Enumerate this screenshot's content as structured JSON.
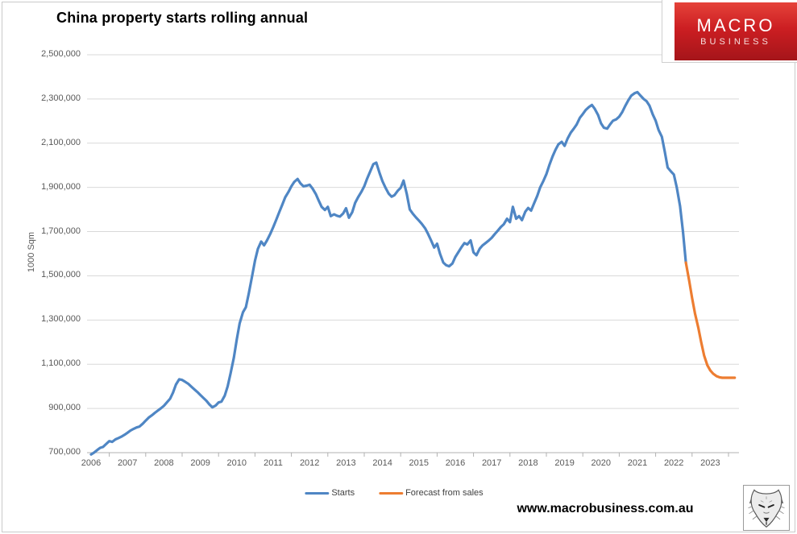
{
  "title": "China property starts rolling annual",
  "logo": {
    "line1": "MACRO",
    "line2": "BUSINESS",
    "background": "#c1191e"
  },
  "footer": {
    "website": "www.macrobusiness.com.au",
    "wolf_icon": "fox-sketch"
  },
  "colors": {
    "starts_line": "#4f86c4",
    "forecast_line": "#ed7d31",
    "gridline": "#d9d9d9",
    "axis_line": "#b0b0b0",
    "tick_text": "#595959",
    "title_text": "#000000"
  },
  "chart_data": {
    "type": "line",
    "title": "China property starts rolling annual",
    "xlabel": "",
    "ylabel": "1000 Sqm",
    "ylim": [
      700000,
      2500000
    ],
    "xlim": [
      2006,
      2023.8
    ],
    "grid": true,
    "legend_position": "bottom",
    "y_ticks": [
      {
        "label": "2,500,000",
        "value": 2500000
      },
      {
        "label": "2,300,000",
        "value": 2300000
      },
      {
        "label": "2,100,000",
        "value": 2100000
      },
      {
        "label": "1,900,000",
        "value": 1900000
      },
      {
        "label": "1,700,000",
        "value": 1700000
      },
      {
        "label": "1,500,000",
        "value": 1500000
      },
      {
        "label": "1,300,000",
        "value": 1300000
      },
      {
        "label": "1,100,000",
        "value": 1100000
      },
      {
        "label": "900,000",
        "value": 900000
      },
      {
        "label": "700,000",
        "value": 700000
      }
    ],
    "x_ticks": [
      2006,
      2007,
      2008,
      2009,
      2010,
      2011,
      2012,
      2013,
      2014,
      2015,
      2016,
      2017,
      2018,
      2019,
      2020,
      2021,
      2022,
      2023
    ],
    "series": [
      {
        "name": "Starts",
        "color": "#4f86c4",
        "points": [
          [
            2006.0,
            692000
          ],
          [
            2006.08,
            700000
          ],
          [
            2006.17,
            712000
          ],
          [
            2006.25,
            722000
          ],
          [
            2006.33,
            726000
          ],
          [
            2006.42,
            740000
          ],
          [
            2006.5,
            752000
          ],
          [
            2006.58,
            749000
          ],
          [
            2006.67,
            760000
          ],
          [
            2006.75,
            766000
          ],
          [
            2006.83,
            772000
          ],
          [
            2006.92,
            781000
          ],
          [
            2007.0,
            790000
          ],
          [
            2007.08,
            800000
          ],
          [
            2007.17,
            808000
          ],
          [
            2007.25,
            814000
          ],
          [
            2007.33,
            818000
          ],
          [
            2007.42,
            831000
          ],
          [
            2007.5,
            845000
          ],
          [
            2007.58,
            858000
          ],
          [
            2007.67,
            869000
          ],
          [
            2007.75,
            880000
          ],
          [
            2007.83,
            890000
          ],
          [
            2007.92,
            901000
          ],
          [
            2008.0,
            912000
          ],
          [
            2008.08,
            927000
          ],
          [
            2008.17,
            944000
          ],
          [
            2008.25,
            972000
          ],
          [
            2008.33,
            1008000
          ],
          [
            2008.42,
            1032000
          ],
          [
            2008.5,
            1029000
          ],
          [
            2008.58,
            1021000
          ],
          [
            2008.67,
            1011000
          ],
          [
            2008.75,
            999000
          ],
          [
            2008.83,
            987000
          ],
          [
            2008.92,
            974000
          ],
          [
            2009.0,
            961000
          ],
          [
            2009.08,
            948000
          ],
          [
            2009.17,
            934000
          ],
          [
            2009.25,
            918000
          ],
          [
            2009.33,
            905000
          ],
          [
            2009.42,
            913000
          ],
          [
            2009.5,
            927000
          ],
          [
            2009.58,
            931000
          ],
          [
            2009.67,
            958000
          ],
          [
            2009.75,
            1000000
          ],
          [
            2009.83,
            1058000
          ],
          [
            2009.92,
            1130000
          ],
          [
            2010.0,
            1212000
          ],
          [
            2010.08,
            1285000
          ],
          [
            2010.17,
            1335000
          ],
          [
            2010.25,
            1358000
          ],
          [
            2010.33,
            1420000
          ],
          [
            2010.42,
            1498000
          ],
          [
            2010.5,
            1568000
          ],
          [
            2010.58,
            1622000
          ],
          [
            2010.67,
            1655000
          ],
          [
            2010.75,
            1638000
          ],
          [
            2010.83,
            1660000
          ],
          [
            2010.92,
            1690000
          ],
          [
            2011.0,
            1720000
          ],
          [
            2011.08,
            1752000
          ],
          [
            2011.17,
            1790000
          ],
          [
            2011.25,
            1822000
          ],
          [
            2011.33,
            1855000
          ],
          [
            2011.42,
            1880000
          ],
          [
            2011.5,
            1905000
          ],
          [
            2011.58,
            1925000
          ],
          [
            2011.67,
            1938000
          ],
          [
            2011.75,
            1918000
          ],
          [
            2011.83,
            1905000
          ],
          [
            2011.92,
            1908000
          ],
          [
            2012.0,
            1912000
          ],
          [
            2012.08,
            1895000
          ],
          [
            2012.17,
            1870000
          ],
          [
            2012.25,
            1840000
          ],
          [
            2012.33,
            1812000
          ],
          [
            2012.42,
            1798000
          ],
          [
            2012.5,
            1812000
          ],
          [
            2012.58,
            1770000
          ],
          [
            2012.67,
            1778000
          ],
          [
            2012.75,
            1772000
          ],
          [
            2012.83,
            1768000
          ],
          [
            2012.92,
            1782000
          ],
          [
            2013.0,
            1806000
          ],
          [
            2013.08,
            1763000
          ],
          [
            2013.17,
            1788000
          ],
          [
            2013.25,
            1830000
          ],
          [
            2013.33,
            1855000
          ],
          [
            2013.42,
            1880000
          ],
          [
            2013.5,
            1905000
          ],
          [
            2013.58,
            1940000
          ],
          [
            2013.67,
            1975000
          ],
          [
            2013.75,
            2005000
          ],
          [
            2013.83,
            2012000
          ],
          [
            2013.92,
            1965000
          ],
          [
            2014.0,
            1928000
          ],
          [
            2014.08,
            1900000
          ],
          [
            2014.17,
            1872000
          ],
          [
            2014.25,
            1858000
          ],
          [
            2014.33,
            1865000
          ],
          [
            2014.42,
            1885000
          ],
          [
            2014.5,
            1898000
          ],
          [
            2014.58,
            1931000
          ],
          [
            2014.67,
            1868000
          ],
          [
            2014.75,
            1800000
          ],
          [
            2014.83,
            1782000
          ],
          [
            2014.92,
            1764000
          ],
          [
            2015.0,
            1750000
          ],
          [
            2015.08,
            1735000
          ],
          [
            2015.17,
            1715000
          ],
          [
            2015.25,
            1690000
          ],
          [
            2015.33,
            1662000
          ],
          [
            2015.42,
            1628000
          ],
          [
            2015.5,
            1645000
          ],
          [
            2015.58,
            1600000
          ],
          [
            2015.67,
            1560000
          ],
          [
            2015.75,
            1548000
          ],
          [
            2015.83,
            1543000
          ],
          [
            2015.92,
            1556000
          ],
          [
            2016.0,
            1585000
          ],
          [
            2016.08,
            1606000
          ],
          [
            2016.17,
            1630000
          ],
          [
            2016.25,
            1648000
          ],
          [
            2016.33,
            1642000
          ],
          [
            2016.42,
            1660000
          ],
          [
            2016.5,
            1606000
          ],
          [
            2016.58,
            1593000
          ],
          [
            2016.67,
            1623000
          ],
          [
            2016.75,
            1638000
          ],
          [
            2016.83,
            1648000
          ],
          [
            2016.92,
            1660000
          ],
          [
            2017.0,
            1672000
          ],
          [
            2017.08,
            1688000
          ],
          [
            2017.17,
            1705000
          ],
          [
            2017.25,
            1721000
          ],
          [
            2017.33,
            1733000
          ],
          [
            2017.42,
            1758000
          ],
          [
            2017.5,
            1743000
          ],
          [
            2017.58,
            1812000
          ],
          [
            2017.67,
            1758000
          ],
          [
            2017.75,
            1770000
          ],
          [
            2017.83,
            1752000
          ],
          [
            2017.92,
            1790000
          ],
          [
            2018.0,
            1807000
          ],
          [
            2018.08,
            1795000
          ],
          [
            2018.17,
            1831000
          ],
          [
            2018.25,
            1862000
          ],
          [
            2018.33,
            1900000
          ],
          [
            2018.42,
            1930000
          ],
          [
            2018.5,
            1960000
          ],
          [
            2018.58,
            2000000
          ],
          [
            2018.67,
            2040000
          ],
          [
            2018.75,
            2070000
          ],
          [
            2018.83,
            2095000
          ],
          [
            2018.92,
            2106000
          ],
          [
            2019.0,
            2088000
          ],
          [
            2019.08,
            2120000
          ],
          [
            2019.17,
            2148000
          ],
          [
            2019.25,
            2165000
          ],
          [
            2019.33,
            2184000
          ],
          [
            2019.42,
            2215000
          ],
          [
            2019.5,
            2232000
          ],
          [
            2019.58,
            2250000
          ],
          [
            2019.67,
            2264000
          ],
          [
            2019.75,
            2273000
          ],
          [
            2019.83,
            2255000
          ],
          [
            2019.92,
            2227000
          ],
          [
            2020.0,
            2190000
          ],
          [
            2020.08,
            2170000
          ],
          [
            2020.17,
            2166000
          ],
          [
            2020.25,
            2185000
          ],
          [
            2020.33,
            2202000
          ],
          [
            2020.42,
            2208000
          ],
          [
            2020.5,
            2220000
          ],
          [
            2020.58,
            2240000
          ],
          [
            2020.67,
            2270000
          ],
          [
            2020.75,
            2294000
          ],
          [
            2020.83,
            2315000
          ],
          [
            2020.92,
            2326000
          ],
          [
            2021.0,
            2331000
          ],
          [
            2021.08,
            2316000
          ],
          [
            2021.17,
            2300000
          ],
          [
            2021.25,
            2290000
          ],
          [
            2021.33,
            2270000
          ],
          [
            2021.42,
            2230000
          ],
          [
            2021.5,
            2202000
          ],
          [
            2021.58,
            2160000
          ],
          [
            2021.67,
            2129000
          ],
          [
            2021.75,
            2062000
          ],
          [
            2021.83,
            1990000
          ],
          [
            2021.92,
            1972000
          ],
          [
            2022.0,
            1958000
          ],
          [
            2022.08,
            1900000
          ],
          [
            2022.17,
            1815000
          ],
          [
            2022.25,
            1700000
          ],
          [
            2022.33,
            1560000
          ]
        ]
      },
      {
        "name": "Forecast from sales",
        "color": "#ed7d31",
        "points": [
          [
            2022.33,
            1560000
          ],
          [
            2022.42,
            1478000
          ],
          [
            2022.5,
            1400000
          ],
          [
            2022.58,
            1330000
          ],
          [
            2022.67,
            1266000
          ],
          [
            2022.75,
            1200000
          ],
          [
            2022.83,
            1140000
          ],
          [
            2022.92,
            1095000
          ],
          [
            2023.0,
            1072000
          ],
          [
            2023.08,
            1057000
          ],
          [
            2023.17,
            1046000
          ],
          [
            2023.25,
            1041000
          ],
          [
            2023.33,
            1039000
          ],
          [
            2023.42,
            1039000
          ],
          [
            2023.5,
            1039000
          ],
          [
            2023.58,
            1039000
          ],
          [
            2023.67,
            1039000
          ]
        ]
      }
    ]
  }
}
